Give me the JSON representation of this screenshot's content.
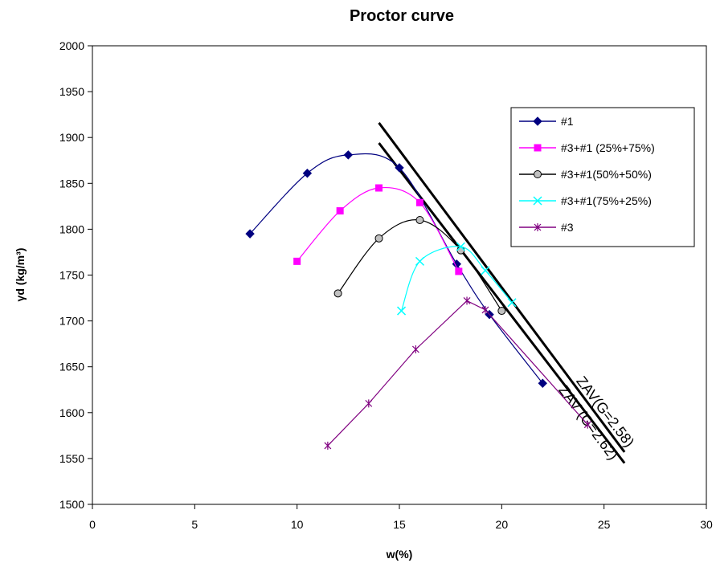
{
  "chart_data": {
    "type": "scatter",
    "title": "Proctor curve",
    "xlabel": "w(%)",
    "ylabel": "γd (kg/m³)",
    "xlim": [
      0,
      30
    ],
    "ylim": [
      1500,
      2000
    ],
    "xticks": [
      0,
      5,
      10,
      15,
      20,
      25,
      30
    ],
    "yticks": [
      1500,
      1550,
      1600,
      1650,
      1700,
      1750,
      1800,
      1850,
      1900,
      1950,
      2000
    ],
    "grid": false,
    "legend_position": "top-right",
    "series": [
      {
        "name": "#1",
        "color": "#000080",
        "marker": "diamond",
        "x": [
          7.7,
          10.5,
          12.5,
          15.0,
          17.8,
          19.4,
          22.0
        ],
        "y": [
          1795,
          1861,
          1881,
          1867,
          1762,
          1707,
          1632
        ]
      },
      {
        "name": "#3+#1 (25%+75%)",
        "color": "#FF00FF",
        "marker": "square",
        "x": [
          10.0,
          12.1,
          14.0,
          16.0,
          17.9
        ],
        "y": [
          1765,
          1820,
          1845,
          1829,
          1754
        ]
      },
      {
        "name": "#3+#1(50%+50%)",
        "color": "#000000",
        "marker": "circle",
        "x": [
          12.0,
          14.0,
          16.0,
          18.0,
          20.0
        ],
        "y": [
          1730,
          1790,
          1810,
          1777,
          1711
        ]
      },
      {
        "name": "#3+#1(75%+25%)",
        "color": "#00FFFF",
        "marker": "x",
        "x": [
          15.1,
          16.0,
          18.0,
          19.2,
          20.5
        ],
        "y": [
          1711,
          1765,
          1781,
          1755,
          1720
        ]
      },
      {
        "name": "#3",
        "color": "#800080",
        "marker": "star",
        "x": [
          11.5,
          13.5,
          15.8,
          18.3,
          19.2,
          24.2
        ],
        "y": [
          1564,
          1610,
          1669,
          1722,
          1712,
          1587
        ]
      }
    ],
    "zav_lines": [
      {
        "label": "ZAV (G=2.62)",
        "x": [
          14.0,
          26.0
        ],
        "y": [
          1916,
          1557
        ]
      },
      {
        "label": "ZAV(G=2.58)",
        "x": [
          14.0,
          26.0
        ],
        "y": [
          1894,
          1545
        ]
      }
    ]
  }
}
